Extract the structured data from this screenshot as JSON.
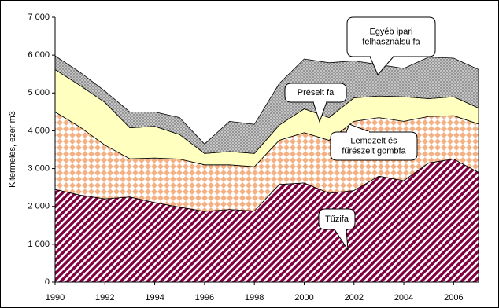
{
  "chart_data": {
    "type": "stacked-area",
    "y_label": "Kitermelés, ezer m3",
    "x": [
      1990,
      1991,
      1992,
      1993,
      1994,
      1995,
      1996,
      1997,
      1998,
      1999,
      2000,
      2001,
      2002,
      2003,
      2004,
      2005,
      2006,
      2007
    ],
    "xlim": [
      1990,
      2007
    ],
    "xticks": [
      1990,
      1992,
      1994,
      1996,
      1998,
      2000,
      2002,
      2004,
      2006
    ],
    "ylim": [
      0,
      7000
    ],
    "yticks": [
      0,
      {
        "value": 1000,
        "label": "1 000"
      },
      {
        "value": 2000,
        "label": "2 000"
      },
      {
        "value": 3000,
        "label": "3 000"
      },
      {
        "value": 4000,
        "label": "4 000"
      },
      {
        "value": 5000,
        "label": "5 000"
      },
      {
        "value": 6000,
        "label": "6 000"
      },
      {
        "value": 7000,
        "label": "7 000"
      }
    ],
    "series": [
      {
        "name": "Tűzifa",
        "color": "#800040",
        "values": [
          2450,
          2300,
          2200,
          2250,
          2100,
          1980,
          1870,
          1920,
          1880,
          2580,
          2620,
          2350,
          2420,
          2800,
          2680,
          3150,
          3250,
          2900
        ]
      },
      {
        "name": "Lemezelt és fűrészelt gömbfa",
        "color": "#f4b183",
        "values": [
          2050,
          1800,
          1420,
          1010,
          1180,
          1270,
          1230,
          1180,
          1170,
          1170,
          1330,
          1400,
          1830,
          1550,
          1570,
          1230,
          1150,
          1280
        ]
      },
      {
        "name": "Préselt fa",
        "color": "#ffffc0",
        "values": [
          1120,
          1100,
          1130,
          820,
          840,
          650,
          300,
          350,
          350,
          400,
          630,
          600,
          620,
          570,
          650,
          470,
          500,
          420
        ]
      },
      {
        "name": "Egyéb ipari felhasználsú fa",
        "color": "#909090",
        "values": [
          360,
          350,
          300,
          420,
          380,
          450,
          250,
          800,
          770,
          1100,
          1320,
          1450,
          980,
          830,
          750,
          1100,
          1020,
          1020
        ]
      }
    ]
  }
}
